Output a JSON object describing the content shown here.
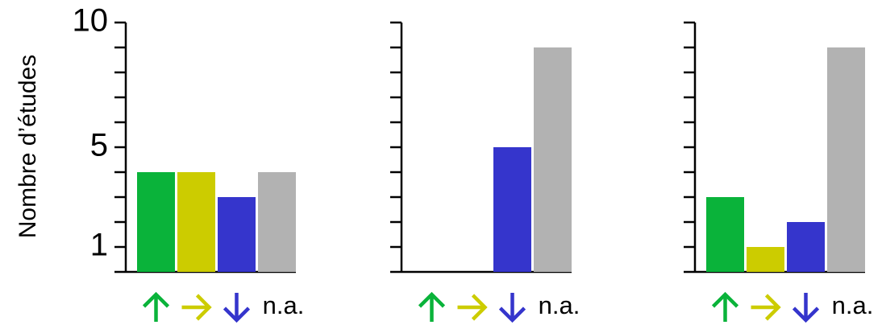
{
  "chart_data": [
    {
      "type": "bar",
      "categories": [
        "↑",
        "→",
        "↓",
        "n.a."
      ],
      "values": [
        4,
        4,
        3,
        4
      ],
      "ylabel": "Nombre d’études",
      "ylim": [
        0,
        10
      ],
      "yticks": [
        1,
        5,
        10
      ],
      "ytick_labels": [
        "1",
        "5",
        "10"
      ],
      "colors": [
        "#0ab33a",
        "#cccc00",
        "#3535cc",
        "#b2b2b2"
      ],
      "category_icons": [
        "arrow-up-icon",
        "arrow-right-icon",
        "arrow-down-icon",
        ""
      ],
      "grid": false,
      "legend": "none"
    },
    {
      "type": "bar",
      "categories": [
        "↑",
        "→",
        "↓",
        "n.a."
      ],
      "values": [
        0,
        0,
        5,
        9
      ],
      "ylim": [
        0,
        10
      ],
      "colors": [
        "#0ab33a",
        "#cccc00",
        "#3535cc",
        "#b2b2b2"
      ],
      "category_icons": [
        "arrow-up-icon",
        "arrow-right-icon",
        "arrow-down-icon",
        ""
      ],
      "grid": false,
      "legend": "none"
    },
    {
      "type": "bar",
      "categories": [
        "↑",
        "→",
        "↓",
        "n.a."
      ],
      "values": [
        3,
        1,
        2,
        9
      ],
      "ylim": [
        0,
        10
      ],
      "colors": [
        "#0ab33a",
        "#cccc00",
        "#3535cc",
        "#b2b2b2"
      ],
      "category_icons": [
        "arrow-up-icon",
        "arrow-right-icon",
        "arrow-down-icon",
        ""
      ],
      "grid": false,
      "legend": "none"
    }
  ]
}
